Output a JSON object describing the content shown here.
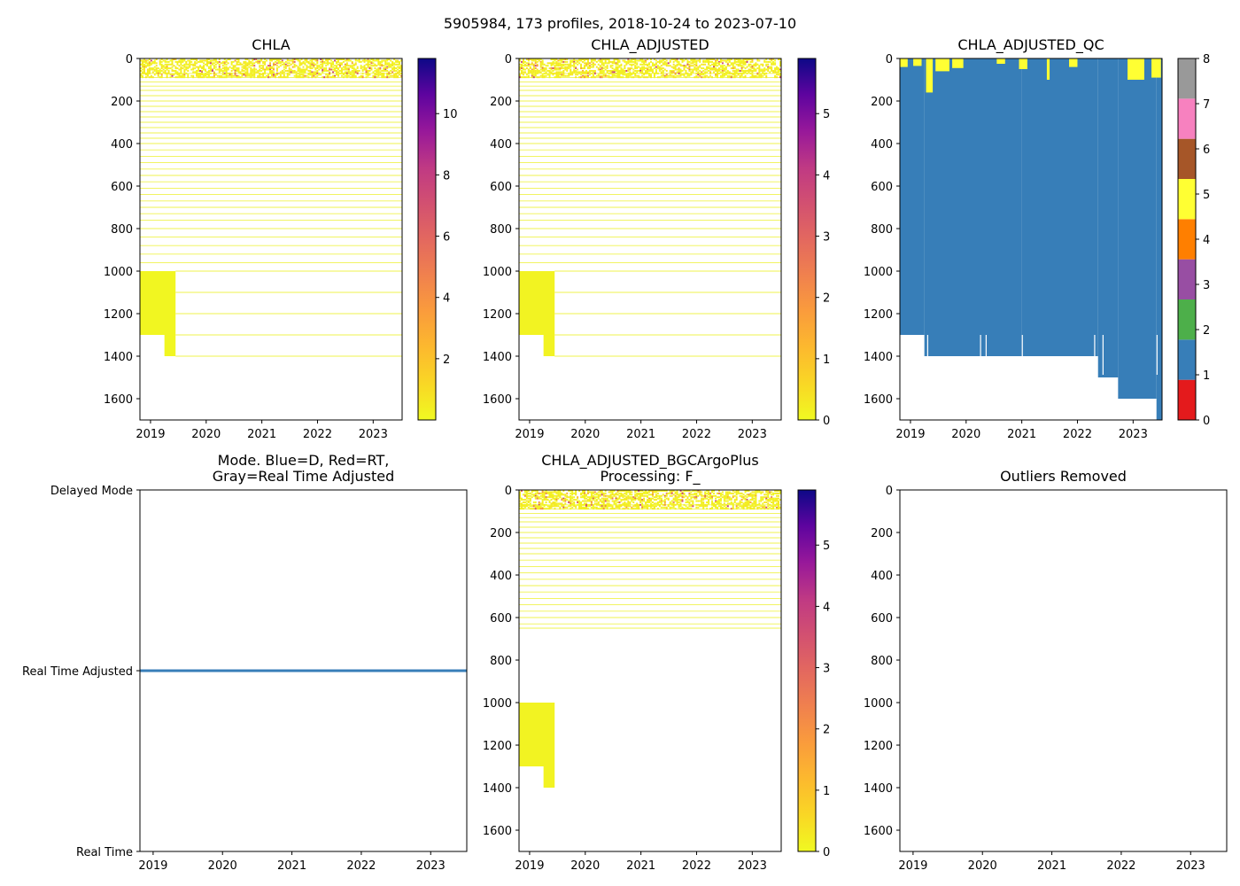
{
  "figure": {
    "suptitle": "5905984, 173 profiles, 2018-10-24 to 2023-07-10"
  },
  "chart_data": [
    {
      "type": "heatmap",
      "id": "chla",
      "title": "CHLA",
      "xlim": [
        2018.81,
        2023.52
      ],
      "ylim": [
        1700,
        0
      ],
      "x_ticks": [
        2019,
        2020,
        2021,
        2022,
        2023
      ],
      "x_tick_labels": [
        "2019",
        "2020",
        "2021",
        "2022",
        "2023"
      ],
      "y_ticks": [
        0,
        200,
        400,
        600,
        800,
        1000,
        1200,
        1400,
        1600
      ],
      "y_tick_labels": [
        "0",
        "200",
        "400",
        "600",
        "800",
        "1000",
        "1200",
        "1400",
        "1600"
      ],
      "colormap": "plasma_r",
      "colorbar": {
        "range": [
          0,
          11.8
        ],
        "ticks": [
          2,
          4,
          6,
          8,
          10
        ],
        "tick_labels": [
          "2",
          "4",
          "6",
          "8",
          "10"
        ]
      },
      "profile_depth_lines": [
        70,
        90,
        110,
        130,
        150,
        175,
        200,
        225,
        250,
        275,
        300,
        325,
        350,
        375,
        400,
        430,
        460,
        490,
        520,
        550,
        580,
        610,
        640,
        670,
        700,
        730,
        760,
        800,
        840,
        880,
        920,
        960,
        1000,
        1100,
        1200,
        1300,
        1400
      ],
      "blocks": [
        {
          "x": [
            2018.81,
            2019.45
          ],
          "y": [
            1000,
            1300
          ],
          "value": 0.1
        },
        {
          "x": [
            2019.25,
            2019.45
          ],
          "y": [
            1300,
            1400
          ],
          "value": 0.1
        }
      ]
    },
    {
      "type": "heatmap",
      "id": "chla_adjusted",
      "title": "CHLA_ADJUSTED",
      "xlim": [
        2018.81,
        2023.52
      ],
      "ylim": [
        1700,
        0
      ],
      "x_ticks": [
        2019,
        2020,
        2021,
        2022,
        2023
      ],
      "x_tick_labels": [
        "2019",
        "2020",
        "2021",
        "2022",
        "2023"
      ],
      "y_ticks": [
        0,
        200,
        400,
        600,
        800,
        1000,
        1200,
        1400,
        1600
      ],
      "y_tick_labels": [
        "0",
        "200",
        "400",
        "600",
        "800",
        "1000",
        "1200",
        "1400",
        "1600"
      ],
      "colormap": "plasma_r",
      "colorbar": {
        "range": [
          0,
          5.9
        ],
        "ticks": [
          0,
          1,
          2,
          3,
          4,
          5
        ],
        "tick_labels": [
          "0",
          "1",
          "2",
          "3",
          "4",
          "5"
        ]
      },
      "profile_depth_lines": [
        70,
        90,
        110,
        130,
        150,
        175,
        200,
        225,
        250,
        275,
        300,
        325,
        350,
        375,
        400,
        430,
        460,
        490,
        520,
        550,
        580,
        610,
        640,
        670,
        700,
        730,
        760,
        800,
        840,
        880,
        920,
        960,
        1000,
        1100,
        1200,
        1300,
        1400
      ],
      "blocks": [
        {
          "x": [
            2018.81,
            2019.45
          ],
          "y": [
            1000,
            1300
          ],
          "value": 0.1
        },
        {
          "x": [
            2019.25,
            2019.45
          ],
          "y": [
            1300,
            1400
          ],
          "value": 0.1
        }
      ]
    },
    {
      "type": "heatmap",
      "id": "chla_adjusted_qc",
      "title": "CHLA_ADJUSTED_QC",
      "xlim": [
        2018.81,
        2023.52
      ],
      "ylim": [
        1700,
        0
      ],
      "x_ticks": [
        2019,
        2020,
        2021,
        2022,
        2023
      ],
      "x_tick_labels": [
        "2019",
        "2020",
        "2021",
        "2022",
        "2023"
      ],
      "y_ticks": [
        0,
        200,
        400,
        600,
        800,
        1000,
        1200,
        1400,
        1600
      ],
      "y_tick_labels": [
        "0",
        "200",
        "400",
        "600",
        "800",
        "1000",
        "1200",
        "1400",
        "1600"
      ],
      "colorbar": {
        "categories": [
          "0",
          "1",
          "2",
          "3",
          "4",
          "5",
          "6",
          "7",
          "8"
        ],
        "colors": [
          "#e41a1c",
          "#377eb8",
          "#4daf4a",
          "#984ea3",
          "#ff7f00",
          "#ffff33",
          "#a65628",
          "#f781bf",
          "#999999"
        ],
        "tick_labels": [
          "0",
          "1",
          "2",
          "3",
          "4",
          "5",
          "6",
          "7",
          "8"
        ]
      },
      "qc1_bottom_segments": [
        {
          "x": [
            2018.81,
            2019.25
          ],
          "bottom": 1300
        },
        {
          "x": [
            2019.25,
            2021.0
          ],
          "bottom": 1400
        },
        {
          "x": [
            2021.0,
            2022.37
          ],
          "bottom": 1400
        },
        {
          "x": [
            2022.37,
            2022.73
          ],
          "bottom": 1500
        },
        {
          "x": [
            2022.73,
            2023.42
          ],
          "bottom": 1600
        },
        {
          "x": [
            2023.42,
            2023.52
          ],
          "bottom": 1700
        }
      ],
      "qc5_surface_bars": [
        {
          "x": [
            2018.81,
            2018.95
          ],
          "depth": 40
        },
        {
          "x": [
            2019.05,
            2019.2
          ],
          "depth": 35
        },
        {
          "x": [
            2019.28,
            2019.4
          ],
          "depth": 160
        },
        {
          "x": [
            2019.45,
            2019.7
          ],
          "depth": 60
        },
        {
          "x": [
            2019.75,
            2019.95
          ],
          "depth": 45
        },
        {
          "x": [
            2020.55,
            2020.7
          ],
          "depth": 25
        },
        {
          "x": [
            2020.95,
            2021.1
          ],
          "depth": 50
        },
        {
          "x": [
            2021.45,
            2021.5
          ],
          "depth": 100
        },
        {
          "x": [
            2021.85,
            2022.0
          ],
          "depth": 40
        },
        {
          "x": [
            2022.9,
            2023.2
          ],
          "depth": 100
        },
        {
          "x": [
            2023.33,
            2023.5
          ],
          "depth": 90
        }
      ]
    },
    {
      "type": "line",
      "id": "mode",
      "title_lines": [
        "Mode. Blue=D, Red=RT,",
        "Gray=Real Time Adjusted"
      ],
      "xlim": [
        2018.81,
        2023.52
      ],
      "x_ticks": [
        2019,
        2020,
        2021,
        2022,
        2023
      ],
      "x_tick_labels": [
        "2019",
        "2020",
        "2021",
        "2022",
        "2023"
      ],
      "y_categories": [
        "Real Time",
        "Real Time Adjusted",
        "Delayed Mode"
      ],
      "ylim": [
        0,
        2
      ],
      "series": [
        {
          "name": "Real Time Adjusted",
          "x": [
            2018.81,
            2023.52
          ],
          "y": [
            1,
            1
          ],
          "color": "#377eb8"
        }
      ]
    },
    {
      "type": "heatmap",
      "id": "chla_bgcargoplus",
      "title_lines": [
        "CHLA_ADJUSTED_BGCArgoPlus",
        "Processing: F_"
      ],
      "xlim": [
        2018.81,
        2023.52
      ],
      "ylim": [
        1700,
        0
      ],
      "x_ticks": [
        2019,
        2020,
        2021,
        2022,
        2023
      ],
      "x_tick_labels": [
        "2019",
        "2020",
        "2021",
        "2022",
        "2023"
      ],
      "y_ticks": [
        0,
        200,
        400,
        600,
        800,
        1000,
        1200,
        1400,
        1600
      ],
      "y_tick_labels": [
        "0",
        "200",
        "400",
        "600",
        "800",
        "1000",
        "1200",
        "1400",
        "1600"
      ],
      "colormap": "plasma_r",
      "colorbar": {
        "range": [
          0,
          5.9
        ],
        "ticks": [
          0,
          1,
          2,
          3,
          4,
          5
        ],
        "tick_labels": [
          "0",
          "1",
          "2",
          "3",
          "4",
          "5"
        ]
      },
      "profile_depth_lines": [
        70,
        90,
        110,
        130,
        150,
        175,
        200,
        225,
        250,
        275,
        300,
        330,
        360,
        390,
        420,
        450,
        480,
        510,
        540,
        570,
        600,
        630,
        650
      ],
      "blocks": [
        {
          "x": [
            2018.81,
            2019.45
          ],
          "y": [
            1000,
            1300
          ],
          "value": 0.1
        },
        {
          "x": [
            2019.25,
            2019.45
          ],
          "y": [
            1300,
            1400
          ],
          "value": 0.1
        }
      ]
    },
    {
      "type": "heatmap",
      "id": "outliers",
      "title": "Outliers Removed",
      "xlim": [
        2018.81,
        2023.52
      ],
      "ylim": [
        1700,
        0
      ],
      "x_ticks": [
        2019,
        2020,
        2021,
        2022,
        2023
      ],
      "x_tick_labels": [
        "2019",
        "2020",
        "2021",
        "2022",
        "2023"
      ],
      "y_ticks": [
        0,
        200,
        400,
        600,
        800,
        1000,
        1200,
        1400,
        1600
      ],
      "y_tick_labels": [
        "0",
        "200",
        "400",
        "600",
        "800",
        "1000",
        "1200",
        "1400",
        "1600"
      ]
    }
  ]
}
